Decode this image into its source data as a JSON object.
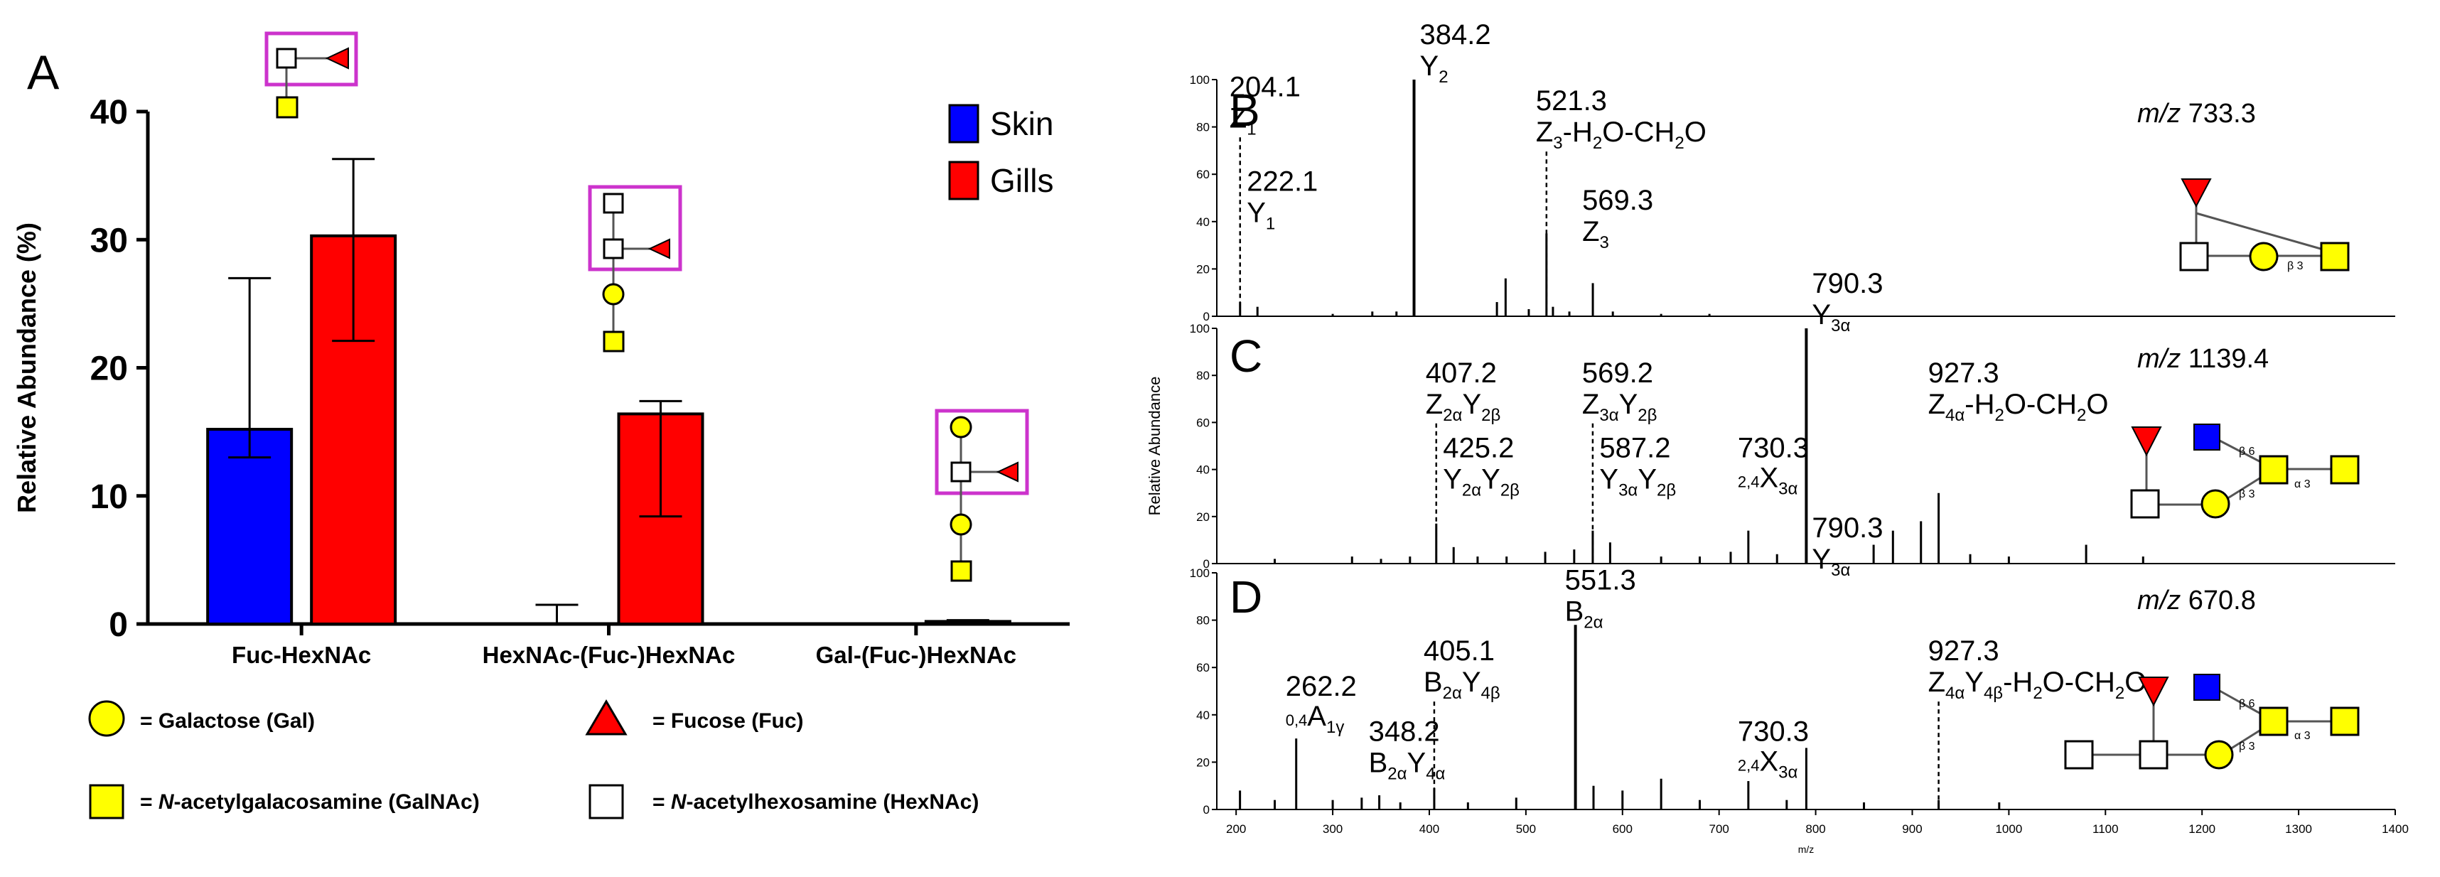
{
  "colors": {
    "skin": "#0000ff",
    "gills": "#ff0000",
    "gal": "#ffff00",
    "galnac": "#ffff00",
    "hexnac": "#ffffff",
    "fuc": "#ff0000",
    "glcnac": "#0000ff",
    "box": "#cc33cc",
    "spectrum": "#000000"
  },
  "panelA": {
    "label": "A",
    "legend_symbols": [
      {
        "icon": "galactose-circle-icon",
        "text": "= Galactose (Gal)"
      },
      {
        "icon": "fucose-triangle-icon",
        "text": "= Fucose (Fuc)"
      },
      {
        "icon": "galnac-square-icon",
        "prefix": "= ",
        "italic": "N",
        "text": "-acetylgalacosamine (GalNAc)"
      },
      {
        "icon": "hexnac-square-icon",
        "prefix": "= ",
        "italic": "N",
        "text": "-acetylhexosamine (HexNAc)"
      }
    ]
  },
  "panels": {
    "B": {
      "label": "B",
      "mz_italic": "m/z",
      "mz_value": "733.3"
    },
    "C": {
      "label": "C",
      "mz_italic": "m/z",
      "mz_value": "1139.4"
    },
    "D": {
      "label": "D",
      "mz_italic": "m/z",
      "mz_value": "670.8"
    }
  },
  "chart_data": [
    {
      "type": "bar",
      "panel": "A",
      "ylabel": "Relative Abundance (%)",
      "ylim": [
        0,
        40
      ],
      "yticks": [
        0,
        10,
        20,
        30,
        40
      ],
      "categories": [
        "Fuc-HexNAc",
        "HexNAc-(Fuc-)HexNAc",
        "Gal-(Fuc-)HexNAc"
      ],
      "series": [
        {
          "name": "Skin",
          "color": "#0000ff",
          "values": [
            15.2,
            0,
            0
          ],
          "error_upper": [
            27.0,
            1.5,
            0
          ],
          "error_lower": [
            13.0,
            0,
            0
          ]
        },
        {
          "name": "Gills",
          "color": "#ff0000",
          "values": [
            30.3,
            16.4,
            0.2
          ],
          "error_upper": [
            36.3,
            17.4,
            0.3
          ],
          "error_lower": [
            22.1,
            8.4,
            0.1
          ]
        }
      ],
      "legend_position": "top-right"
    },
    {
      "type": "spectrum",
      "panel": "B",
      "ylim": [
        0,
        100
      ],
      "yticks": [
        0,
        20,
        40,
        60,
        80,
        100
      ],
      "peaks": [
        {
          "mz": 204.1,
          "intensity": 6
        },
        {
          "mz": 222.1,
          "intensity": 4
        },
        {
          "mz": 300,
          "intensity": 1
        },
        {
          "mz": 341,
          "intensity": 2
        },
        {
          "mz": 366,
          "intensity": 2
        },
        {
          "mz": 384.2,
          "intensity": 100
        },
        {
          "mz": 470,
          "intensity": 6
        },
        {
          "mz": 479,
          "intensity": 16
        },
        {
          "mz": 503,
          "intensity": 3
        },
        {
          "mz": 521.3,
          "intensity": 35
        },
        {
          "mz": 528,
          "intensity": 4
        },
        {
          "mz": 545,
          "intensity": 2
        },
        {
          "mz": 569.3,
          "intensity": 14
        },
        {
          "mz": 590,
          "intensity": 2
        },
        {
          "mz": 640,
          "intensity": 1
        },
        {
          "mz": 690,
          "intensity": 1
        }
      ],
      "annotations": [
        {
          "mz": 204.1,
          "dashed": true,
          "top": 78,
          "lines": [
            {
              "text": "204.1"
            },
            {
              "text": "Z",
              "sub": "1"
            }
          ]
        },
        {
          "mz": 222.1,
          "dashed": false,
          "top": 38,
          "lines": [
            {
              "text": "222.1"
            },
            {
              "text": "Y",
              "sub": "1"
            }
          ]
        },
        {
          "mz": 384.2,
          "dashed": false,
          "top": 100,
          "lines": [
            {
              "text": "384.2"
            },
            {
              "text": "Y",
              "sub": "2"
            }
          ]
        },
        {
          "mz": 521.3,
          "dashed": true,
          "top": 72,
          "lines": [
            {
              "text": "521.3"
            },
            {
              "text": "Z",
              "sub": "3",
              "text2": "-H",
              "sub2": "2",
              "text3": "O-CH",
              "sub3": "2",
              "text4": "O"
            }
          ]
        },
        {
          "mz": 569.3,
          "dashed": false,
          "top": 30,
          "lines": [
            {
              "text": "569.3"
            },
            {
              "text": "Z",
              "sub": "3"
            }
          ]
        }
      ]
    },
    {
      "type": "spectrum",
      "panel": "C",
      "ylabel": "Relative Abundance",
      "ylim": [
        0,
        100
      ],
      "yticks": [
        0,
        20,
        40,
        60,
        80,
        100
      ],
      "peaks": [
        {
          "mz": 240,
          "intensity": 2
        },
        {
          "mz": 320,
          "intensity": 3
        },
        {
          "mz": 350,
          "intensity": 2
        },
        {
          "mz": 380,
          "intensity": 3
        },
        {
          "mz": 407.2,
          "intensity": 17
        },
        {
          "mz": 425.2,
          "intensity": 7
        },
        {
          "mz": 450,
          "intensity": 3
        },
        {
          "mz": 480,
          "intensity": 3
        },
        {
          "mz": 520,
          "intensity": 5
        },
        {
          "mz": 550,
          "intensity": 6
        },
        {
          "mz": 569.2,
          "intensity": 14
        },
        {
          "mz": 587.2,
          "intensity": 9
        },
        {
          "mz": 640,
          "intensity": 3
        },
        {
          "mz": 680,
          "intensity": 3
        },
        {
          "mz": 712,
          "intensity": 5
        },
        {
          "mz": 730.3,
          "intensity": 14
        },
        {
          "mz": 760,
          "intensity": 4
        },
        {
          "mz": 790.3,
          "intensity": 100
        },
        {
          "mz": 860,
          "intensity": 8
        },
        {
          "mz": 880,
          "intensity": 14
        },
        {
          "mz": 909,
          "intensity": 18
        },
        {
          "mz": 927.3,
          "intensity": 30
        },
        {
          "mz": 960,
          "intensity": 4
        },
        {
          "mz": 1000,
          "intensity": 3
        },
        {
          "mz": 1080,
          "intensity": 8
        },
        {
          "mz": 1139,
          "intensity": 3
        }
      ],
      "annotations": [
        {
          "mz": 407.2,
          "dashed": true,
          "top": 62,
          "lines": [
            {
              "text": "407.2"
            },
            {
              "text": "Z",
              "sub": "2α",
              "text2": "Y",
              "sub2": "2β"
            }
          ]
        },
        {
          "mz": 425.2,
          "dashed": false,
          "top": 30,
          "lines": [
            {
              "text": "425.2"
            },
            {
              "text": "Y",
              "sub": "2α",
              "text2": "Y",
              "sub2": "2β"
            }
          ]
        },
        {
          "mz": 569.2,
          "dashed": true,
          "top": 62,
          "lines": [
            {
              "text": "569.2"
            },
            {
              "text": "Z",
              "sub": "3α",
              "text2": "Y",
              "sub2": "2β"
            }
          ]
        },
        {
          "mz": 587.2,
          "dashed": false,
          "top": 30,
          "lines": [
            {
              "text": "587.2"
            },
            {
              "text": "Y",
              "sub": "3α",
              "text2": "Y",
              "sub2": "2β"
            }
          ]
        },
        {
          "mz": 730.3,
          "dashed": false,
          "top": 30,
          "lines": [
            {
              "text": "730.3"
            },
            {
              "sup": "2,4",
              "text": "X",
              "sub": "3α"
            }
          ]
        },
        {
          "mz": 790.3,
          "dashed": false,
          "top": 100,
          "lines": [
            {
              "text": "790.3"
            },
            {
              "text": "Y",
              "sub": "3α"
            }
          ]
        },
        {
          "mz": 927.3,
          "dashed": false,
          "top": 62,
          "lines": [
            {
              "text": "927.3"
            },
            {
              "text": "Z",
              "sub": "4α",
              "text2": "-H",
              "sub2": "2",
              "text3": "O-CH",
              "sub3": "2",
              "text4": "O"
            }
          ]
        }
      ]
    },
    {
      "type": "spectrum",
      "panel": "D",
      "xlabel": "m/z",
      "xlim": [
        180,
        1400
      ],
      "xticks": [
        200,
        300,
        400,
        500,
        600,
        700,
        800,
        900,
        1000,
        1100,
        1200,
        1300,
        1400
      ],
      "ylim": [
        0,
        100
      ],
      "yticks": [
        0,
        20,
        40,
        60,
        80,
        100
      ],
      "peaks": [
        {
          "mz": 204,
          "intensity": 8
        },
        {
          "mz": 240,
          "intensity": 4
        },
        {
          "mz": 262.2,
          "intensity": 30
        },
        {
          "mz": 300,
          "intensity": 4
        },
        {
          "mz": 330,
          "intensity": 5
        },
        {
          "mz": 348.2,
          "intensity": 6
        },
        {
          "mz": 370,
          "intensity": 3
        },
        {
          "mz": 405.1,
          "intensity": 9
        },
        {
          "mz": 440,
          "intensity": 3
        },
        {
          "mz": 490,
          "intensity": 5
        },
        {
          "mz": 551.3,
          "intensity": 78
        },
        {
          "mz": 570,
          "intensity": 10
        },
        {
          "mz": 600,
          "intensity": 8
        },
        {
          "mz": 640,
          "intensity": 13
        },
        {
          "mz": 680,
          "intensity": 4
        },
        {
          "mz": 730.3,
          "intensity": 12
        },
        {
          "mz": 770,
          "intensity": 4
        },
        {
          "mz": 790.3,
          "intensity": 26
        },
        {
          "mz": 850,
          "intensity": 3
        },
        {
          "mz": 927.3,
          "intensity": 4
        },
        {
          "mz": 990,
          "intensity": 3
        }
      ],
      "annotations": [
        {
          "mz": 262.2,
          "dashed": false,
          "top": 33,
          "lines": [
            {
              "text": "262.2"
            },
            {
              "sup": "0,4",
              "text": "A",
              "sub": "1γ"
            }
          ]
        },
        {
          "mz": 348.2,
          "dashed": false,
          "top": 14,
          "lines": [
            {
              "text": "348.2"
            },
            {
              "text": "B",
              "sub": "2α",
              "text2": "Y",
              "sub2": "4α"
            }
          ]
        },
        {
          "mz": 405.1,
          "dashed": true,
          "top": 48,
          "lines": [
            {
              "text": "405.1"
            },
            {
              "text": "B",
              "sub": "2α",
              "text2": "Y",
              "sub2": "4β"
            }
          ]
        },
        {
          "mz": 551.3,
          "dashed": false,
          "top": 78,
          "lines": [
            {
              "text": "551.3"
            },
            {
              "text": "B",
              "sub": "2α"
            }
          ]
        },
        {
          "mz": 730.3,
          "dashed": false,
          "top": 14,
          "lines": [
            {
              "text": "730.3"
            },
            {
              "sup": "2,4",
              "text": "X",
              "sub": "3α"
            }
          ]
        },
        {
          "mz": 790.3,
          "dashed": false,
          "top": 100,
          "lines": [
            {
              "text": "790.3"
            },
            {
              "text": "Y",
              "sub": "3α"
            }
          ]
        },
        {
          "mz": 927.3,
          "dashed": true,
          "top": 48,
          "lines": [
            {
              "text": "927.3"
            },
            {
              "text": "Z",
              "sub": "4α",
              "text2": "Y",
              "sub2": "4β",
              "text3": "-H",
              "sub3": "2",
              "text4": "O-CH",
              "sub4": "2",
              "text5": "O"
            }
          ]
        }
      ]
    }
  ]
}
